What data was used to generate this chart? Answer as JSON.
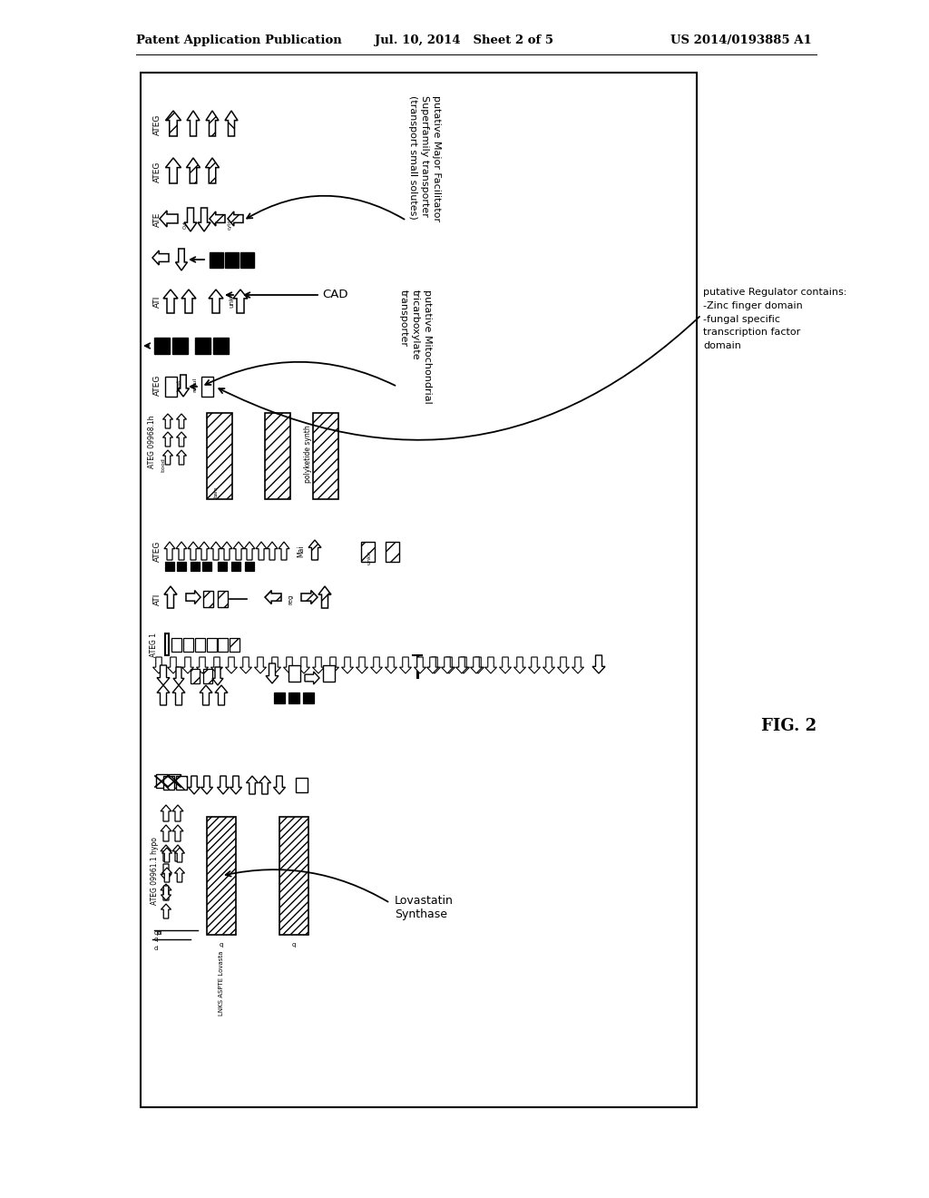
{
  "header_left": "Patent Application Publication",
  "header_center": "Jul. 10, 2014   Sheet 2 of 5",
  "header_right": "US 2014/0193885 A1",
  "fig_label": "FIG. 2",
  "bg": "#ffffff",
  "ann_lovastatin": "Lovastatin\nSynthase",
  "ann_cad": "CAD",
  "ann_mito": "putative Mitochondrial\ntricarboxylate\ntransporter",
  "ann_mfs": "putative Major Facilitator\nSuperfamily transporter\n(transport small solutes)",
  "ann_reg": "putative Regulator contains:\n-Zinc finger domain\n-fungal specific\ntranscription factor\ndomain"
}
